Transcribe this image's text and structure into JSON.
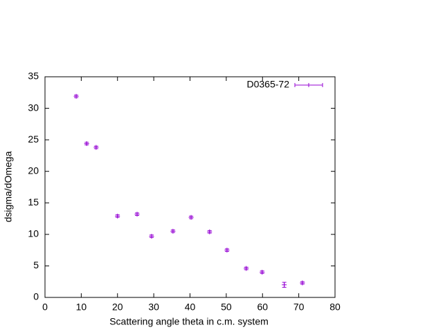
{
  "chart_data": {
    "type": "scatter",
    "xlabel": "Scattering angle theta in c.m. system",
    "ylabel": "dsigma/dOmega",
    "series": [
      {
        "name": "D0365-72",
        "color": "#9400d3",
        "x": [
          8.6,
          11.5,
          14.1,
          20.0,
          25.4,
          29.4,
          35.3,
          40.3,
          45.4,
          50.2,
          55.5,
          59.9,
          66.0,
          71.0
        ],
        "values": [
          31.9,
          24.4,
          23.8,
          12.9,
          13.2,
          9.7,
          10.5,
          12.7,
          10.4,
          7.5,
          4.6,
          4.0,
          2.0,
          2.3
        ],
        "errors": [
          0.2,
          0.2,
          0.2,
          0.2,
          0.2,
          0.2,
          0.2,
          0.2,
          0.2,
          0.2,
          0.2,
          0.2,
          0.4,
          0.2
        ]
      }
    ],
    "xlim": [
      0,
      80
    ],
    "xticks": [
      0,
      10,
      20,
      30,
      40,
      50,
      60,
      70,
      80
    ],
    "ylim": [
      0,
      35
    ],
    "yticks": [
      0,
      5,
      10,
      15,
      20,
      25,
      30,
      35
    ],
    "legend": "top-right"
  }
}
